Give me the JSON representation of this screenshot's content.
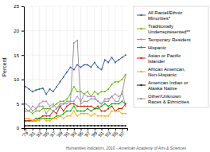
{
  "chart_data": {
    "type": "line",
    "ylabel": "Percent",
    "annotations": [
      "Humanities Indicators, 2010 - American Academy of Arts & Sciences"
    ],
    "x": [
      1979,
      1980,
      1981,
      1982,
      1983,
      1984,
      1985,
      1986,
      1987,
      1988,
      1989,
      1990,
      1991,
      1992,
      1993,
      1994,
      1995,
      1996,
      1997,
      1998,
      1999,
      2000,
      2001,
      2002,
      2003,
      2004,
      2005,
      2006,
      2007,
      2008
    ],
    "series": [
      {
        "name": "All Racial/Ethnic\nMinorities*",
        "color": "#3355aa",
        "values": [
          8.5,
          8.0,
          7.5,
          7.8,
          8.0,
          8.2,
          7.0,
          8.0,
          7.5,
          8.5,
          9.5,
          10.5,
          11.5,
          12.5,
          12.0,
          13.0,
          12.5,
          13.0,
          13.0,
          12.5,
          13.5,
          12.5,
          12.0,
          14.0,
          13.5,
          14.5,
          13.5,
          14.0,
          14.5,
          15.0
        ]
      },
      {
        "name": "Traditionally\nUnderrepresented**",
        "color": "#66bb00",
        "values": [
          3.5,
          3.5,
          3.0,
          3.5,
          3.5,
          4.0,
          4.0,
          4.0,
          4.5,
          5.0,
          5.5,
          5.5,
          6.0,
          7.0,
          8.5,
          7.5,
          7.5,
          7.0,
          7.5,
          6.5,
          7.5,
          7.0,
          7.5,
          7.5,
          8.0,
          9.0,
          9.5,
          9.5,
          10.0,
          11.0
        ]
      },
      {
        "name": "Temporary Resident",
        "color": "#bb88cc",
        "values": [
          4.0,
          3.5,
          4.5,
          4.0,
          5.0,
          5.5,
          5.5,
          4.5,
          5.0,
          4.0,
          4.5,
          5.0,
          5.0,
          5.5,
          5.5,
          6.5,
          5.5,
          7.0,
          6.5,
          6.5,
          6.5,
          5.5,
          5.0,
          6.0,
          6.0,
          6.5,
          5.5,
          5.5,
          7.5,
          4.5
        ]
      },
      {
        "name": "Hispanic",
        "color": "#00aa00",
        "values": [
          1.5,
          1.5,
          1.5,
          2.0,
          2.0,
          2.0,
          2.0,
          2.0,
          2.0,
          2.5,
          2.5,
          3.0,
          3.5,
          3.5,
          4.5,
          3.5,
          3.5,
          3.5,
          4.0,
          3.5,
          4.0,
          4.0,
          4.5,
          5.0,
          4.5,
          5.0,
          5.0,
          5.0,
          5.5,
          5.0
        ]
      },
      {
        "name": "Asian or Pacific\nIslander",
        "color": "#cc2200",
        "values": [
          1.5,
          1.5,
          1.5,
          1.5,
          2.0,
          2.5,
          2.5,
          2.5,
          3.5,
          3.0,
          4.5,
          3.5,
          4.5,
          5.0,
          5.0,
          4.5,
          4.5,
          4.5,
          4.5,
          4.5,
          4.0,
          4.5,
          3.5,
          3.5,
          4.0,
          4.5,
          3.5,
          4.0,
          4.0,
          5.0
        ]
      },
      {
        "name": "African American,\nNon-Hispanic",
        "color": "#ffaa00",
        "values": [
          2.0,
          2.0,
          1.5,
          1.5,
          1.5,
          2.0,
          1.5,
          1.5,
          2.0,
          2.0,
          2.5,
          2.0,
          2.5,
          2.5,
          3.5,
          2.5,
          3.0,
          3.0,
          3.0,
          2.5,
          3.0,
          2.5,
          2.5,
          2.5,
          2.5,
          3.5,
          3.5,
          3.5,
          3.0,
          3.0
        ]
      },
      {
        "name": "American Indian or\nAlaska Native",
        "color": "#111111",
        "values": [
          0.5,
          0.5,
          0.5,
          0.5,
          0.5,
          0.5,
          0.5,
          0.5,
          0.5,
          0.5,
          0.5,
          0.5,
          0.5,
          0.5,
          0.5,
          0.5,
          0.5,
          0.5,
          0.5,
          0.5,
          0.5,
          0.5,
          0.5,
          0.5,
          0.5,
          0.5,
          0.5,
          0.5,
          0.5,
          0.5
        ]
      },
      {
        "name": "Other/Unknown\nRaces & Ethnicities",
        "color": "#999999",
        "values": [
          5.0,
          4.5,
          3.5,
          4.0,
          4.5,
          4.5,
          3.0,
          4.0,
          3.5,
          4.0,
          5.0,
          5.0,
          5.5,
          5.5,
          17.5,
          18.0,
          5.0,
          5.5,
          5.5,
          6.0,
          6.0,
          5.5,
          5.0,
          5.5,
          5.5,
          6.5,
          7.0,
          6.5,
          7.0,
          11.0
        ]
      }
    ],
    "xlim": [
      1978.5,
      2008.5
    ],
    "xticks": [
      {
        "value": 1979,
        "label": "'79"
      },
      {
        "value": 1981,
        "label": "'81"
      },
      {
        "value": 1983,
        "label": "'83"
      },
      {
        "value": 1985,
        "label": "'85"
      },
      {
        "value": 1987,
        "label": "'87"
      },
      {
        "value": 1989,
        "label": "'89"
      },
      {
        "value": 1991,
        "label": "'91"
      },
      {
        "value": 1993,
        "label": "'93"
      },
      {
        "value": 1995,
        "label": "'95"
      },
      {
        "value": 1997,
        "label": "'97"
      },
      {
        "value": 1999,
        "label": "'99"
      },
      {
        "value": 2001,
        "label": "'01"
      },
      {
        "value": 2003,
        "label": "'03"
      },
      {
        "value": 2005,
        "label": "'05"
      },
      {
        "value": 2007,
        "label": "'07"
      }
    ],
    "ylim": [
      0,
      25
    ],
    "yticks": [
      0,
      5,
      10,
      15,
      20,
      25
    ],
    "grid": true,
    "legend": "right",
    "marker": "circle"
  }
}
